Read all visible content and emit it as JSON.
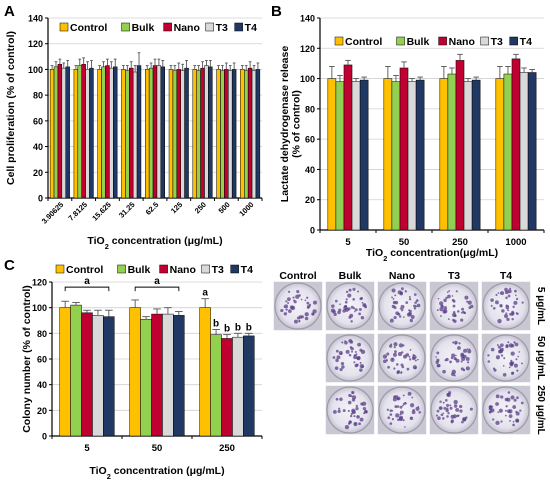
{
  "colors": {
    "Control": "#FFC000",
    "Bulk": "#92D050",
    "Nano": "#C00030",
    "T3": "#D9D9D9",
    "T4": "#1F3864",
    "grid": "#D0D0D0"
  },
  "chart_data": [
    {
      "panel": "A",
      "type": "bar",
      "xlabel": "TiO2 concentration (μg/mL)",
      "ylabel": "Cell proliferation (% of control)",
      "ylim": [
        0,
        140
      ],
      "yticks": [
        0,
        20,
        40,
        60,
        80,
        100,
        120,
        140
      ],
      "grid": true,
      "legend_position": "top-left",
      "categories": [
        "3.90625",
        "7.8125",
        "15.625",
        "31.25",
        "62.5",
        "125",
        "250",
        "500",
        "1000"
      ],
      "series": [
        {
          "name": "Control",
          "values": [
            100,
            100,
            100,
            100,
            100,
            100,
            100,
            100,
            100
          ],
          "errors": [
            3,
            3,
            3,
            3,
            3,
            3,
            3,
            3,
            3
          ]
        },
        {
          "name": "Bulk",
          "values": [
            102,
            103,
            102,
            99,
            101,
            99,
            99,
            99,
            99
          ],
          "errors": [
            4,
            5,
            4,
            4,
            4,
            4,
            4,
            4,
            4
          ]
        },
        {
          "name": "Nano",
          "values": [
            104,
            104,
            103,
            101,
            103,
            100,
            101,
            100,
            101
          ],
          "errors": [
            4,
            5,
            5,
            5,
            5,
            5,
            5,
            5,
            5
          ]
        },
        {
          "name": "T3",
          "values": [
            101,
            100,
            101,
            98,
            103,
            99,
            103,
            99,
            99
          ],
          "errors": [
            4,
            6,
            5,
            5,
            5,
            5,
            4,
            4,
            4
          ]
        },
        {
          "name": "T4",
          "values": [
            102,
            101,
            102,
            103,
            102,
            101,
            102,
            100,
            100
          ],
          "errors": [
            5,
            6,
            6,
            10,
            5,
            6,
            5,
            5,
            5
          ]
        }
      ]
    },
    {
      "panel": "B",
      "type": "bar",
      "xlabel": "TiO2 concentration(μg/mL)",
      "ylabel": "Lactate dehydrogenase release (% of control)",
      "ylim": [
        0,
        140
      ],
      "yticks": [
        0,
        20,
        40,
        60,
        80,
        100,
        120,
        140
      ],
      "grid": true,
      "legend_position": "top",
      "categories": [
        "5",
        "50",
        "250",
        "1000"
      ],
      "series": [
        {
          "name": "Control",
          "values": [
            100,
            100,
            100,
            100
          ],
          "errors": [
            8,
            8,
            8,
            8
          ]
        },
        {
          "name": "Bulk",
          "values": [
            98,
            98,
            103,
            103
          ],
          "errors": [
            4,
            4,
            4,
            5
          ]
        },
        {
          "name": "Nano",
          "values": [
            109,
            107,
            112,
            113
          ],
          "errors": [
            3,
            4,
            4,
            3
          ]
        },
        {
          "name": "T3",
          "values": [
            98,
            98,
            98,
            104
          ],
          "errors": [
            2,
            2,
            2,
            3
          ]
        },
        {
          "name": "T4",
          "values": [
            99,
            99,
            99,
            104
          ],
          "errors": [
            2,
            2,
            2,
            2
          ]
        }
      ]
    },
    {
      "panel": "C",
      "type": "bar",
      "xlabel": "TiO2 concentration (μg/mL)",
      "ylabel": "Colony number (% of control)",
      "ylim": [
        0,
        120
      ],
      "yticks": [
        0,
        20,
        40,
        60,
        80,
        100,
        120
      ],
      "grid": true,
      "legend_position": "top",
      "categories": [
        "5",
        "50",
        "250"
      ],
      "series": [
        {
          "name": "Control",
          "values": [
            100,
            100,
            100
          ],
          "errors": [
            5,
            6,
            7
          ]
        },
        {
          "name": "Bulk",
          "values": [
            102,
            91,
            79
          ],
          "errors": [
            2,
            2,
            4
          ]
        },
        {
          "name": "Nano",
          "values": [
            96,
            95,
            76
          ],
          "errors": [
            2,
            4,
            3
          ]
        },
        {
          "name": "T3",
          "values": [
            94,
            95,
            77
          ],
          "errors": [
            4,
            5,
            3
          ]
        },
        {
          "name": "T4",
          "values": [
            93,
            94,
            78
          ],
          "errors": [
            5,
            3,
            2
          ]
        }
      ],
      "annotations": {
        "bracket_labels": [
          "a",
          "a"
        ],
        "group3_labels": [
          "a",
          "b",
          "b",
          "b",
          "b"
        ]
      }
    }
  ],
  "panel_labels": [
    "A",
    "B",
    "C"
  ],
  "photo_panel": {
    "columns": [
      "Control",
      "Bulk",
      "Nano",
      "T3",
      "T4"
    ],
    "rows": [
      "5 μg/mL",
      "50 μg/mL",
      "250 μg/mL"
    ]
  }
}
